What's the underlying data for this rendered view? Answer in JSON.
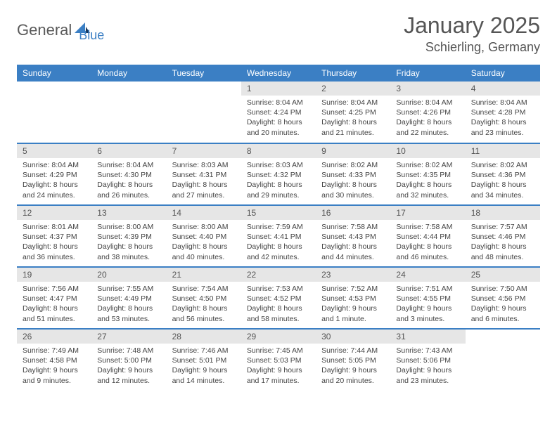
{
  "logo": {
    "text1": "General",
    "text2": "Blue"
  },
  "title": {
    "month": "January 2025",
    "location": "Schierling, Germany"
  },
  "colors": {
    "header_bg": "#3b7fc4",
    "header_text": "#ffffff",
    "daynum_bg": "#e6e6e6",
    "row_border": "#3b7fc4",
    "body_text": "#444444",
    "title_text": "#555555",
    "background": "#ffffff"
  },
  "daysOfWeek": [
    "Sunday",
    "Monday",
    "Tuesday",
    "Wednesday",
    "Thursday",
    "Friday",
    "Saturday"
  ],
  "weeks": [
    [
      {
        "n": "",
        "sr": "",
        "ss": "",
        "dl1": "",
        "dl2": ""
      },
      {
        "n": "",
        "sr": "",
        "ss": "",
        "dl1": "",
        "dl2": ""
      },
      {
        "n": "",
        "sr": "",
        "ss": "",
        "dl1": "",
        "dl2": ""
      },
      {
        "n": "1",
        "sr": "Sunrise: 8:04 AM",
        "ss": "Sunset: 4:24 PM",
        "dl1": "Daylight: 8 hours",
        "dl2": "and 20 minutes."
      },
      {
        "n": "2",
        "sr": "Sunrise: 8:04 AM",
        "ss": "Sunset: 4:25 PM",
        "dl1": "Daylight: 8 hours",
        "dl2": "and 21 minutes."
      },
      {
        "n": "3",
        "sr": "Sunrise: 8:04 AM",
        "ss": "Sunset: 4:26 PM",
        "dl1": "Daylight: 8 hours",
        "dl2": "and 22 minutes."
      },
      {
        "n": "4",
        "sr": "Sunrise: 8:04 AM",
        "ss": "Sunset: 4:28 PM",
        "dl1": "Daylight: 8 hours",
        "dl2": "and 23 minutes."
      }
    ],
    [
      {
        "n": "5",
        "sr": "Sunrise: 8:04 AM",
        "ss": "Sunset: 4:29 PM",
        "dl1": "Daylight: 8 hours",
        "dl2": "and 24 minutes."
      },
      {
        "n": "6",
        "sr": "Sunrise: 8:04 AM",
        "ss": "Sunset: 4:30 PM",
        "dl1": "Daylight: 8 hours",
        "dl2": "and 26 minutes."
      },
      {
        "n": "7",
        "sr": "Sunrise: 8:03 AM",
        "ss": "Sunset: 4:31 PM",
        "dl1": "Daylight: 8 hours",
        "dl2": "and 27 minutes."
      },
      {
        "n": "8",
        "sr": "Sunrise: 8:03 AM",
        "ss": "Sunset: 4:32 PM",
        "dl1": "Daylight: 8 hours",
        "dl2": "and 29 minutes."
      },
      {
        "n": "9",
        "sr": "Sunrise: 8:02 AM",
        "ss": "Sunset: 4:33 PM",
        "dl1": "Daylight: 8 hours",
        "dl2": "and 30 minutes."
      },
      {
        "n": "10",
        "sr": "Sunrise: 8:02 AM",
        "ss": "Sunset: 4:35 PM",
        "dl1": "Daylight: 8 hours",
        "dl2": "and 32 minutes."
      },
      {
        "n": "11",
        "sr": "Sunrise: 8:02 AM",
        "ss": "Sunset: 4:36 PM",
        "dl1": "Daylight: 8 hours",
        "dl2": "and 34 minutes."
      }
    ],
    [
      {
        "n": "12",
        "sr": "Sunrise: 8:01 AM",
        "ss": "Sunset: 4:37 PM",
        "dl1": "Daylight: 8 hours",
        "dl2": "and 36 minutes."
      },
      {
        "n": "13",
        "sr": "Sunrise: 8:00 AM",
        "ss": "Sunset: 4:39 PM",
        "dl1": "Daylight: 8 hours",
        "dl2": "and 38 minutes."
      },
      {
        "n": "14",
        "sr": "Sunrise: 8:00 AM",
        "ss": "Sunset: 4:40 PM",
        "dl1": "Daylight: 8 hours",
        "dl2": "and 40 minutes."
      },
      {
        "n": "15",
        "sr": "Sunrise: 7:59 AM",
        "ss": "Sunset: 4:41 PM",
        "dl1": "Daylight: 8 hours",
        "dl2": "and 42 minutes."
      },
      {
        "n": "16",
        "sr": "Sunrise: 7:58 AM",
        "ss": "Sunset: 4:43 PM",
        "dl1": "Daylight: 8 hours",
        "dl2": "and 44 minutes."
      },
      {
        "n": "17",
        "sr": "Sunrise: 7:58 AM",
        "ss": "Sunset: 4:44 PM",
        "dl1": "Daylight: 8 hours",
        "dl2": "and 46 minutes."
      },
      {
        "n": "18",
        "sr": "Sunrise: 7:57 AM",
        "ss": "Sunset: 4:46 PM",
        "dl1": "Daylight: 8 hours",
        "dl2": "and 48 minutes."
      }
    ],
    [
      {
        "n": "19",
        "sr": "Sunrise: 7:56 AM",
        "ss": "Sunset: 4:47 PM",
        "dl1": "Daylight: 8 hours",
        "dl2": "and 51 minutes."
      },
      {
        "n": "20",
        "sr": "Sunrise: 7:55 AM",
        "ss": "Sunset: 4:49 PM",
        "dl1": "Daylight: 8 hours",
        "dl2": "and 53 minutes."
      },
      {
        "n": "21",
        "sr": "Sunrise: 7:54 AM",
        "ss": "Sunset: 4:50 PM",
        "dl1": "Daylight: 8 hours",
        "dl2": "and 56 minutes."
      },
      {
        "n": "22",
        "sr": "Sunrise: 7:53 AM",
        "ss": "Sunset: 4:52 PM",
        "dl1": "Daylight: 8 hours",
        "dl2": "and 58 minutes."
      },
      {
        "n": "23",
        "sr": "Sunrise: 7:52 AM",
        "ss": "Sunset: 4:53 PM",
        "dl1": "Daylight: 9 hours",
        "dl2": "and 1 minute."
      },
      {
        "n": "24",
        "sr": "Sunrise: 7:51 AM",
        "ss": "Sunset: 4:55 PM",
        "dl1": "Daylight: 9 hours",
        "dl2": "and 3 minutes."
      },
      {
        "n": "25",
        "sr": "Sunrise: 7:50 AM",
        "ss": "Sunset: 4:56 PM",
        "dl1": "Daylight: 9 hours",
        "dl2": "and 6 minutes."
      }
    ],
    [
      {
        "n": "26",
        "sr": "Sunrise: 7:49 AM",
        "ss": "Sunset: 4:58 PM",
        "dl1": "Daylight: 9 hours",
        "dl2": "and 9 minutes."
      },
      {
        "n": "27",
        "sr": "Sunrise: 7:48 AM",
        "ss": "Sunset: 5:00 PM",
        "dl1": "Daylight: 9 hours",
        "dl2": "and 12 minutes."
      },
      {
        "n": "28",
        "sr": "Sunrise: 7:46 AM",
        "ss": "Sunset: 5:01 PM",
        "dl1": "Daylight: 9 hours",
        "dl2": "and 14 minutes."
      },
      {
        "n": "29",
        "sr": "Sunrise: 7:45 AM",
        "ss": "Sunset: 5:03 PM",
        "dl1": "Daylight: 9 hours",
        "dl2": "and 17 minutes."
      },
      {
        "n": "30",
        "sr": "Sunrise: 7:44 AM",
        "ss": "Sunset: 5:05 PM",
        "dl1": "Daylight: 9 hours",
        "dl2": "and 20 minutes."
      },
      {
        "n": "31",
        "sr": "Sunrise: 7:43 AM",
        "ss": "Sunset: 5:06 PM",
        "dl1": "Daylight: 9 hours",
        "dl2": "and 23 minutes."
      },
      {
        "n": "",
        "sr": "",
        "ss": "",
        "dl1": "",
        "dl2": ""
      }
    ]
  ]
}
